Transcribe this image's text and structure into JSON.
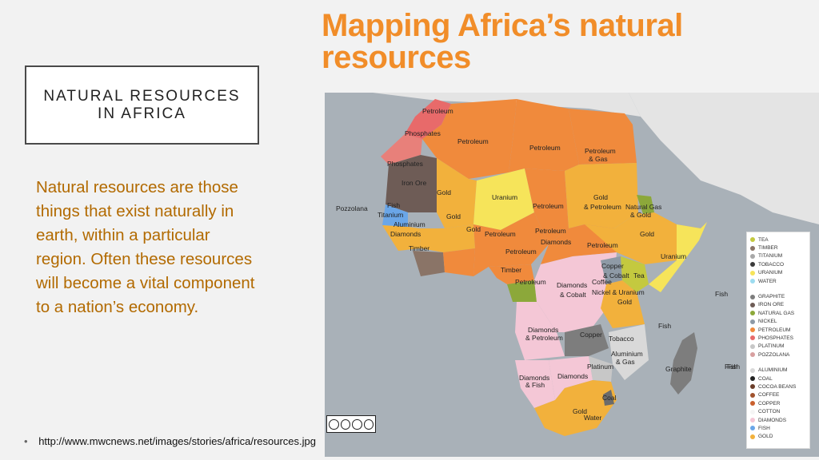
{
  "slide": {
    "title_line1": "NATURAL RESOURCES",
    "title_line2": "IN AFRICA",
    "body": "Natural resources are those things that exist naturally in earth, within a particular region. Often these resources will become a vital component to a nation’s economy.",
    "source_url": "http://www.mwcnews.net/images/stories/africa/resources.jpg"
  },
  "map": {
    "title_line1": "Mapping Africa’s natural",
    "title_line2": "resources",
    "labels": [
      {
        "id": "lbl-petroleum-algeria",
        "text": "Petroleum"
      },
      {
        "id": "lbl-phosphates-morocco",
        "text": "Phosphates"
      },
      {
        "id": "lbl-petroleum-algeria2",
        "text": "Petroleum"
      },
      {
        "id": "lbl-petroleum-libya",
        "text": "Petroleum"
      },
      {
        "id": "lbl-petroleum-gas-egypt",
        "text": "Petroleum"
      },
      {
        "id": "lbl-gas-egypt",
        "text": "& Gas"
      },
      {
        "id": "lbl-phosphates-wsahara",
        "text": "Phosphates"
      },
      {
        "id": "lbl-ironore-mauritania",
        "text": "Iron Ore"
      },
      {
        "id": "lbl-gold-mali",
        "text": "Gold"
      },
      {
        "id": "lbl-uranium-niger",
        "text": "Uranium"
      },
      {
        "id": "lbl-petroleum-chad",
        "text": "Petroleum"
      },
      {
        "id": "lbl-gold-sudan",
        "text": "Gold"
      },
      {
        "id": "lbl-petroleum-sudan",
        "text": "& Petroleum"
      },
      {
        "id": "lbl-naturalgas-eritrea",
        "text": "Natural Gas"
      },
      {
        "id": "lbl-gold-eritrea",
        "text": "& Gold"
      },
      {
        "id": "lbl-pozzolana",
        "text": "Pozzolana"
      },
      {
        "id": "lbl-fish-senegal",
        "text": "Fish"
      },
      {
        "id": "lbl-titanium",
        "text": "Titanium"
      },
      {
        "id": "lbl-gold-burkina",
        "text": "Gold"
      },
      {
        "id": "lbl-aluminium",
        "text": "Aluminium"
      },
      {
        "id": "lbl-diamonds-guinea",
        "text": "Diamonds"
      },
      {
        "id": "lbl-gold-ghana",
        "text": "Gold"
      },
      {
        "id": "lbl-petroleum-nigeria",
        "text": "Petroleum"
      },
      {
        "id": "lbl-petroleum-nigeria2",
        "text": "Petroleum"
      },
      {
        "id": "lbl-timber-liberia",
        "text": "Timber"
      },
      {
        "id": "lbl-diamonds-car",
        "text": "Diamonds"
      },
      {
        "id": "lbl-petroleum-ssudan",
        "text": "Petroleum"
      },
      {
        "id": "lbl-gold-ethiopia",
        "text": "Gold"
      },
      {
        "id": "lbl-uranium-somalia",
        "text": "Uranium"
      },
      {
        "id": "lbl-petroleum-cameroon",
        "text": "Petroleum"
      },
      {
        "id": "lbl-copper-uganda",
        "text": "Copper"
      },
      {
        "id": "lbl-cobalt-uganda",
        "text": "& Cobalt"
      },
      {
        "id": "lbl-tea-kenya",
        "text": "Tea"
      },
      {
        "id": "lbl-coffee",
        "text": "Coffee"
      },
      {
        "id": "lbl-timber-gabon",
        "text": "Timber"
      },
      {
        "id": "lbl-petroleum-gabon",
        "text": "Petroleum"
      },
      {
        "id": "lbl-diamonds-drc",
        "text": "Diamonds"
      },
      {
        "id": "lbl-cobalt-drc",
        "text": "& Cobalt"
      },
      {
        "id": "lbl-nickel-uranium",
        "text": "Nickel & Uranium"
      },
      {
        "id": "lbl-gold-tanzania",
        "text": "Gold"
      },
      {
        "id": "lbl-fish-east",
        "text": "Fish"
      },
      {
        "id": "lbl-diamonds-angola",
        "text": "Diamonds"
      },
      {
        "id": "lbl-petroleum-angola",
        "text": "& Petroleum"
      },
      {
        "id": "lbl-copper-zambia",
        "text": "Copper"
      },
      {
        "id": "lbl-tobacco",
        "text": "Tobacco"
      },
      {
        "id": "lbl-fish-mozambique",
        "text": "Fish"
      },
      {
        "id": "lbl-aluminium-moz",
        "text": "Aluminium"
      },
      {
        "id": "lbl-gas-moz",
        "text": "& Gas"
      },
      {
        "id": "lbl-platinum",
        "text": "Platinum"
      },
      {
        "id": "lbl-graphite",
        "text": "Graphite"
      },
      {
        "id": "lbl-fish-madagascar",
        "text": "Fish"
      },
      {
        "id": "lbl-diamonds-namibia",
        "text": "Diamonds"
      },
      {
        "id": "lbl-fish-namibia",
        "text": "& Fish"
      },
      {
        "id": "lbl-diamonds-botswana",
        "text": "Diamonds"
      },
      {
        "id": "lbl-coal",
        "text": "Coal"
      },
      {
        "id": "lbl-gold-sa",
        "text": "Gold"
      },
      {
        "id": "lbl-water",
        "text": "Water"
      },
      {
        "id": "lbl-fish-indian",
        "text": "Fish"
      }
    ],
    "legend": [
      [
        {
          "label": "TEA",
          "color": "#c4c93f"
        },
        {
          "label": "TIMBER",
          "color": "#8a7467"
        },
        {
          "label": "TITANIUM",
          "color": "#a8a8a8"
        },
        {
          "label": "TOBACCO",
          "color": "#3b3b3b"
        },
        {
          "label": "URANIUM",
          "color": "#f6e45a"
        },
        {
          "label": "WATER",
          "color": "#9ddcf0"
        }
      ],
      [
        {
          "label": "GRAPHITE",
          "color": "#7d7d7d"
        },
        {
          "label": "IRON ORE",
          "color": "#6e5c56"
        },
        {
          "label": "NATURAL GAS",
          "color": "#8ca83a"
        },
        {
          "label": "NICKEL",
          "color": "#8e9aa6"
        },
        {
          "label": "PETROLEUM",
          "color": "#f08a3c"
        },
        {
          "label": "PHOSPHATES",
          "color": "#e86a6a"
        },
        {
          "label": "PLATINUM",
          "color": "#c7c7c7"
        },
        {
          "label": "POZZOLANA",
          "color": "#d8a0a0"
        }
      ],
      [
        {
          "label": "ALUMINIUM",
          "color": "#d9d9d9"
        },
        {
          "label": "COAL",
          "color": "#222222"
        },
        {
          "label": "COCOA BEANS",
          "color": "#6b3e2a"
        },
        {
          "label": "COFFEE",
          "color": "#a0522d"
        },
        {
          "label": "COPPER",
          "color": "#c9602e"
        },
        {
          "label": "COTTON",
          "color": "#f5f5f5"
        },
        {
          "label": "DIAMONDS",
          "color": "#f4c7d6"
        },
        {
          "label": "FISH",
          "color": "#6aa6e8"
        },
        {
          "label": "GOLD",
          "color": "#f2b13c"
        }
      ]
    ]
  }
}
